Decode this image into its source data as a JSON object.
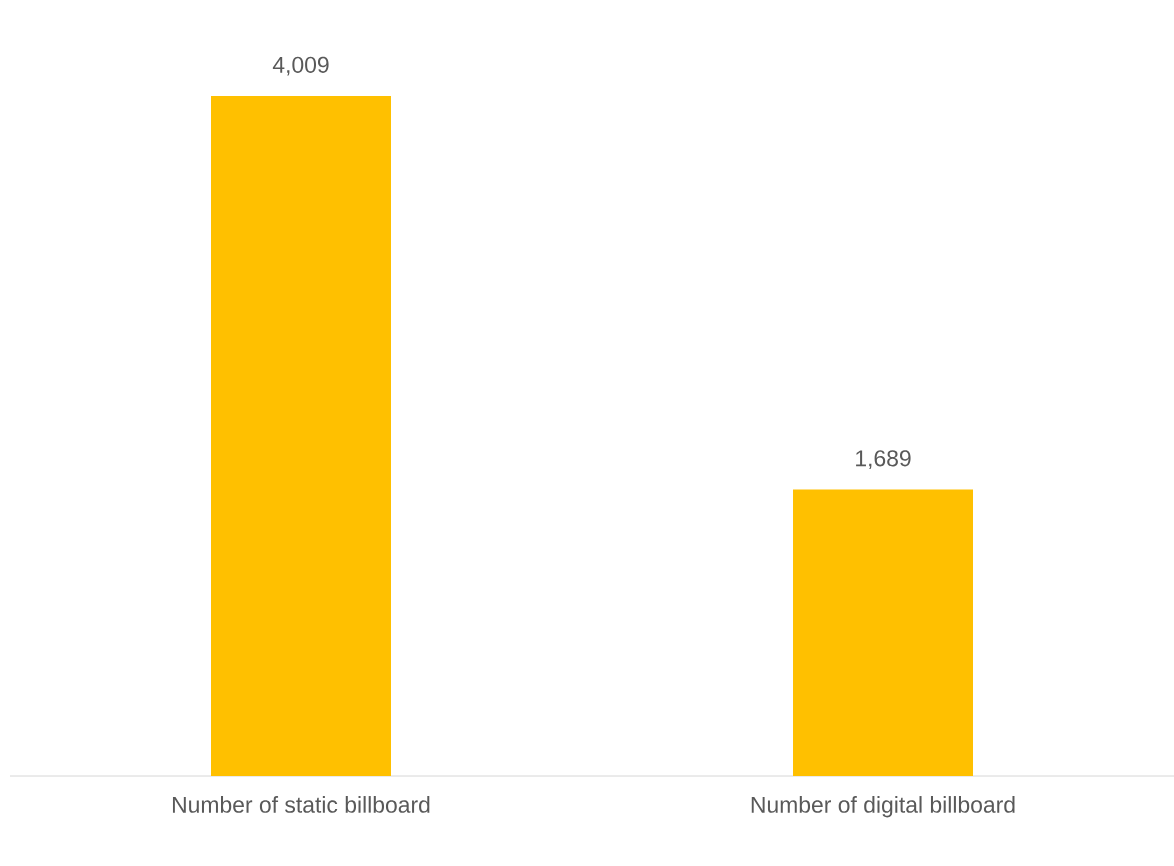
{
  "chart_data": {
    "type": "bar",
    "categories": [
      "Number of static billboard",
      "Number of digital billboard"
    ],
    "values": [
      4009,
      1689
    ],
    "value_labels": [
      "4,009",
      "1,689"
    ],
    "color": "#ffc000"
  }
}
